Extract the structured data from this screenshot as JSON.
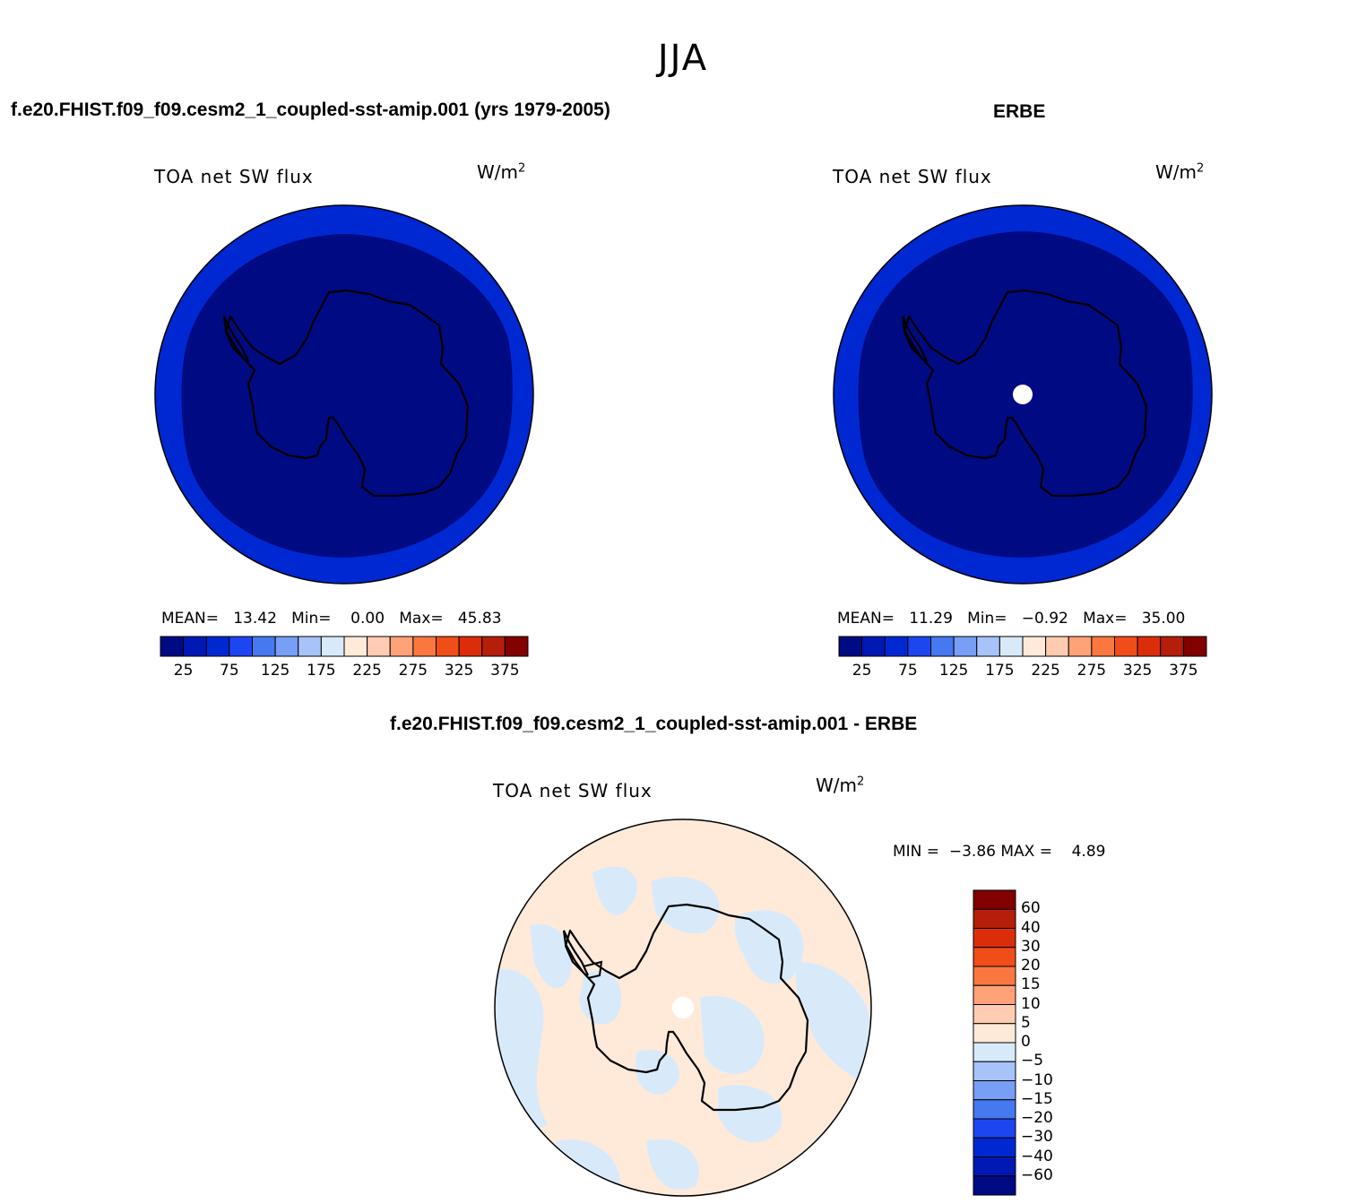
{
  "season": "JJA",
  "panels": [
    {
      "title": "f.e20.FHIST.f09_f09.cesm2_1_coupled-sst-amip.001 (yrs 1979-2005)",
      "variable": "TOA net SW flux",
      "units": "W/m",
      "units_exp": "2",
      "stats": {
        "mean_label": "MEAN=",
        "mean": "13.42",
        "min_label": "Min=",
        "min": "0.00",
        "max_label": "Max=",
        "max": "45.83"
      },
      "pole_hole": false
    },
    {
      "title": "ERBE",
      "variable": "TOA net SW flux",
      "units": "W/m",
      "units_exp": "2",
      "stats": {
        "mean_label": "MEAN=",
        "mean": "11.29",
        "min_label": "Min=",
        "min": "−0.92",
        "max_label": "Max=",
        "max": "35.00"
      },
      "pole_hole": true
    }
  ],
  "abs_colorbar": {
    "colors": [
      "#000a82",
      "#0019b4",
      "#0028d2",
      "#1e46f0",
      "#4678f0",
      "#789ef5",
      "#a8c3fa",
      "#d8eafa",
      "#ffeada",
      "#ffcbb2",
      "#ffa278",
      "#fa7840",
      "#f04d18",
      "#dc2d0a",
      "#b41e0a",
      "#820000"
    ],
    "tick_labels": [
      "25",
      "75",
      "125",
      "175",
      "225",
      "275",
      "325",
      "375"
    ]
  },
  "diff": {
    "title": "f.e20.FHIST.f09_f09.cesm2_1_coupled-sst-amip.001 - ERBE",
    "variable": "TOA net SW flux",
    "units": "W/m",
    "units_exp": "2",
    "min_label": "MIN =",
    "min": "−3.86",
    "max_label": "MAX =",
    "max": "4.89",
    "colors_top_to_bottom": [
      "#820000",
      "#b41e0a",
      "#dc2d0a",
      "#f04d18",
      "#fa7840",
      "#ffa278",
      "#ffcbb2",
      "#ffeada",
      "#d8eafa",
      "#a8c3fa",
      "#789ef5",
      "#4678f0",
      "#1e46f0",
      "#0028d2",
      "#0019b4",
      "#000a82"
    ],
    "labels_top_to_bottom": [
      "60",
      "40",
      "30",
      "20",
      "15",
      "10",
      "5",
      "0",
      "−5",
      "−10",
      "−15",
      "−20",
      "−30",
      "−40",
      "−60"
    ]
  }
}
